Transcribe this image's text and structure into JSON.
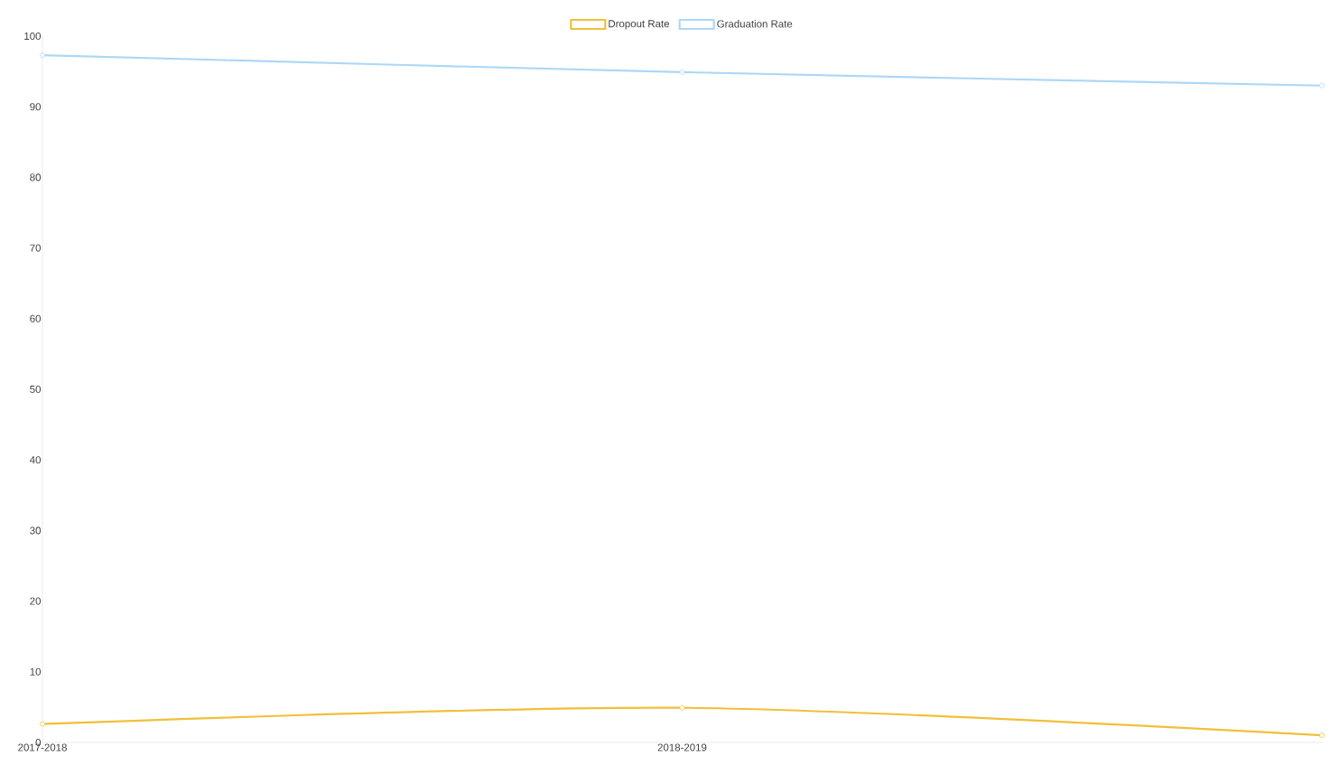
{
  "chart_data": {
    "type": "line",
    "categories": [
      "2017-2018",
      "2018-2019",
      null
    ],
    "series": [
      {
        "name": "Dropout Rate",
        "color": "#f0c03a",
        "values": [
          2.6,
          4.9,
          1.0
        ]
      },
      {
        "name": "Graduation Rate",
        "color": "#acd7f7",
        "values": [
          97.3,
          94.9,
          93.0
        ]
      }
    ],
    "ylim": [
      0,
      100
    ],
    "yticks": [
      0,
      10,
      20,
      30,
      40,
      50,
      60,
      70,
      80,
      90,
      100
    ],
    "legend": "top",
    "marker": "circle",
    "line_style": "solid",
    "grid": false
  }
}
